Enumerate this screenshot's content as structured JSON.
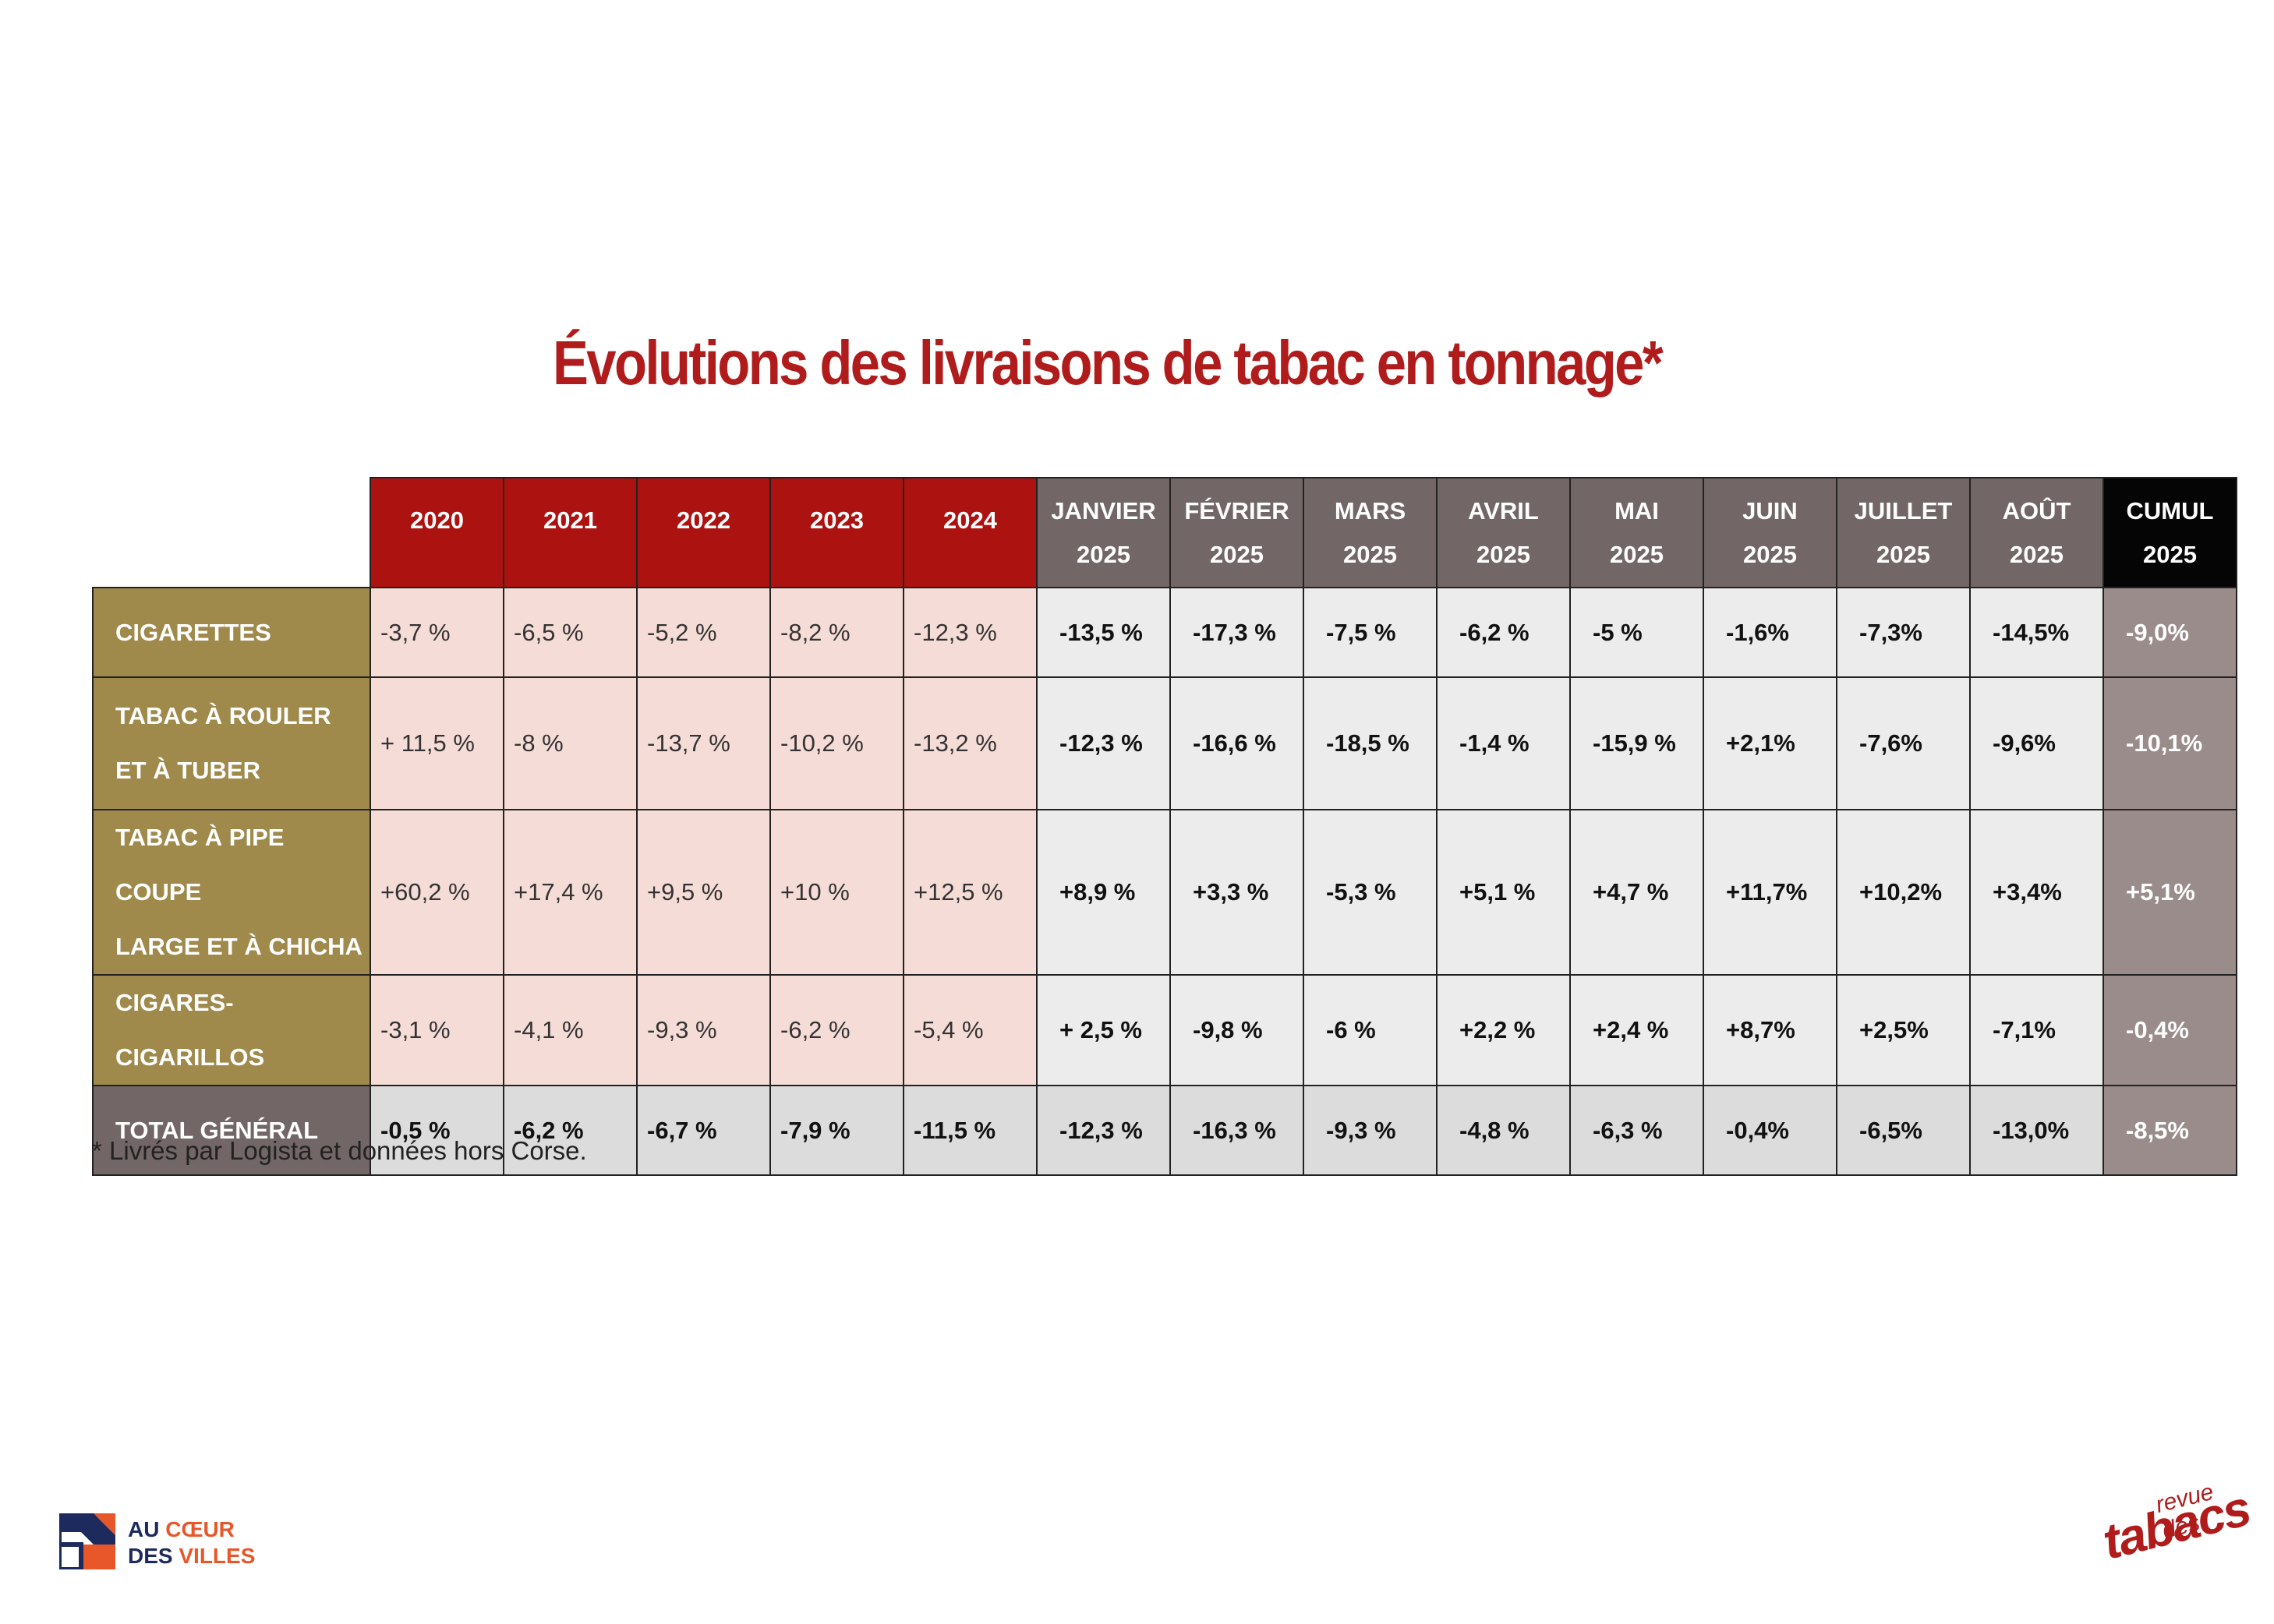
{
  "title": "Évolutions des livraisons de tabac en tonnage*",
  "footnote": "* Livrés par Logista et données hors Corse.",
  "chart_data": {
    "type": "table",
    "title": "Évolutions des livraisons de tabac en tonnage*",
    "columns": [
      {
        "lines": [
          "2020"
        ],
        "group": "year"
      },
      {
        "lines": [
          "2021"
        ],
        "group": "year"
      },
      {
        "lines": [
          "2022"
        ],
        "group": "year"
      },
      {
        "lines": [
          "2023"
        ],
        "group": "year"
      },
      {
        "lines": [
          "2024"
        ],
        "group": "year"
      },
      {
        "lines": [
          "JANVIER",
          "2025"
        ],
        "group": "month"
      },
      {
        "lines": [
          "FÉVRIER",
          "2025"
        ],
        "group": "month"
      },
      {
        "lines": [
          "MARS",
          "2025"
        ],
        "group": "month"
      },
      {
        "lines": [
          "AVRIL",
          "2025"
        ],
        "group": "month"
      },
      {
        "lines": [
          "MAI",
          "2025"
        ],
        "group": "month"
      },
      {
        "lines": [
          "JUIN",
          "2025"
        ],
        "group": "month"
      },
      {
        "lines": [
          "JUILLET",
          "2025"
        ],
        "group": "month"
      },
      {
        "lines": [
          "AOÛT",
          "2025"
        ],
        "group": "month"
      },
      {
        "lines": [
          "CUMUL",
          "2025"
        ],
        "group": "cumul"
      }
    ],
    "rows": [
      {
        "label": [
          "CIGARETTES"
        ],
        "values": [
          "-3,7 %",
          "-6,5 %",
          "-5,2 %",
          "-8,2 %",
          "-12,3 %",
          "-13,5 %",
          "-17,3 %",
          "-7,5 %",
          "-6,2 %",
          "-5 %",
          "-1,6%",
          "-7,3%",
          "-14,5%",
          "-9,0%"
        ]
      },
      {
        "label": [
          "TABAC À ROULER",
          "ET À TUBER"
        ],
        "values": [
          "+ 11,5 %",
          "-8 %",
          "-13,7 %",
          "-10,2 %",
          "-13,2 %",
          "-12,3 %",
          "-16,6 %",
          "-18,5 %",
          "-1,4 %",
          "-15,9 %",
          "+2,1%",
          "-7,6%",
          "-9,6%",
          "-10,1%"
        ]
      },
      {
        "label": [
          "TABAC À PIPE COUPE",
          "LARGE ET À CHICHA"
        ],
        "values": [
          "+60,2 %",
          "+17,4 %",
          "+9,5 %",
          "+10 %",
          "+12,5 %",
          "+8,9 %",
          "+3,3 %",
          "-5,3 %",
          "+5,1 %",
          "+4,7 %",
          "+11,7%",
          "+10,2%",
          "+3,4%",
          "+5,1%"
        ]
      },
      {
        "label": [
          "CIGARES-CIGARILLOS"
        ],
        "values": [
          "-3,1 %",
          "-4,1 %",
          "-9,3 %",
          "-6,2 %",
          "-5,4 %",
          "+ 2,5 %",
          "-9,8 %",
          "-6 %",
          "+2,2 %",
          "+2,4 %",
          "+8,7%",
          "+2,5%",
          "-7,1%",
          "-0,4%"
        ]
      },
      {
        "label": [
          "TOTAL GÉNÉRAL"
        ],
        "values": [
          "-0,5 %",
          "-6,2 %",
          "-6,7 %",
          "-7,9 %",
          "-11,5 %",
          "-12,3 %",
          "-16,3 %",
          "-9,3 %",
          "-4,8 %",
          "-6,3 %",
          "-0,4%",
          "-6,5%",
          "-13,0%",
          "-8,5%"
        ],
        "total": true
      }
    ]
  },
  "colors": {
    "title": "#b01c1c",
    "year_header": "#ac1210",
    "month_header": "#726766",
    "cumul_header": "#050505",
    "row_label": "#9f8a4c",
    "year_cell": "#f6dcd6",
    "month_cell": "#ececec",
    "cumul_cell": "#9a8c8b",
    "total_cell": "#dcdcdc"
  },
  "logos": {
    "left": {
      "line1_a": "AU ",
      "line1_b": "CŒUR",
      "line2_a": "DES ",
      "line2_b": "VILLES",
      "icon": "house-mark-icon"
    },
    "right": {
      "small": "revue des",
      "big": "tabacs"
    }
  }
}
